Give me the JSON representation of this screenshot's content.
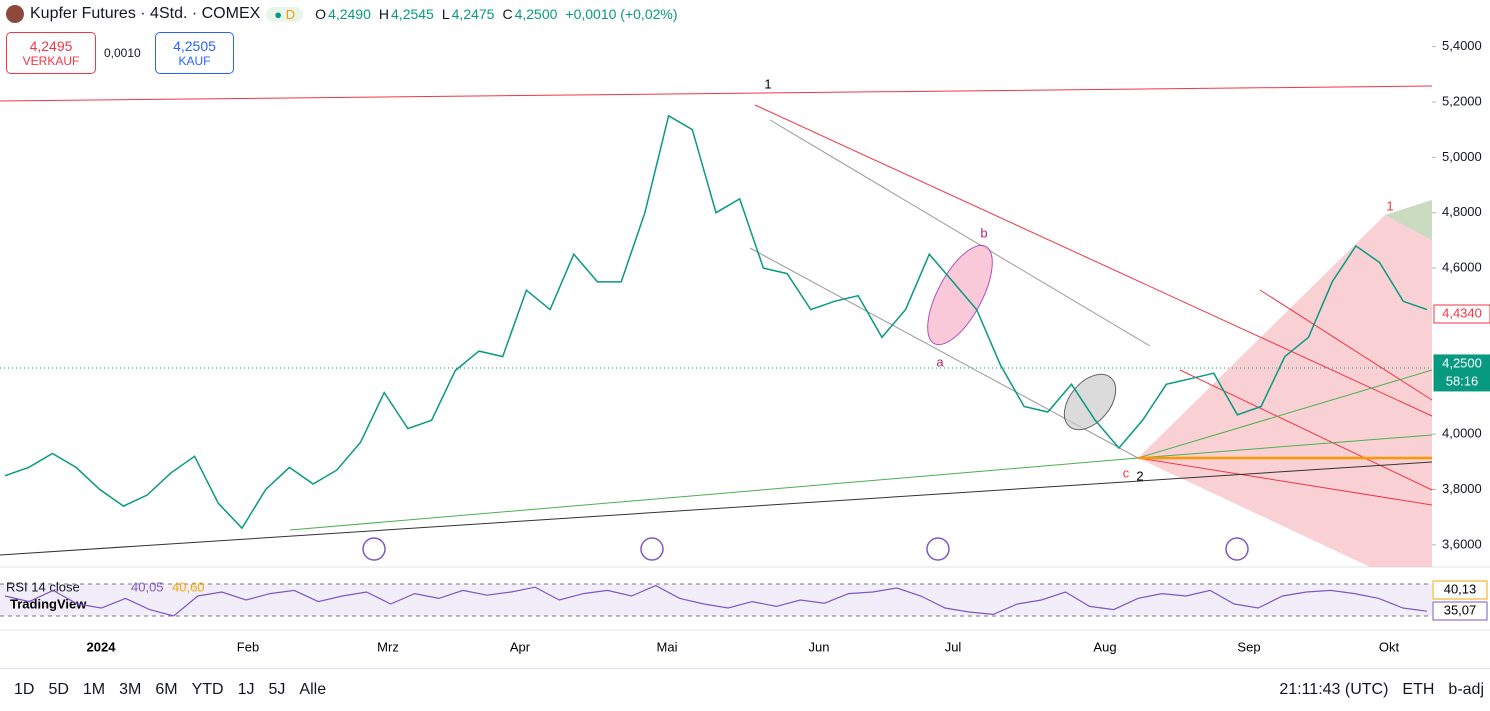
{
  "header": {
    "title": "Kupfer Futures · 4Std. · COMEX",
    "badge": "D",
    "ohlc": [
      {
        "k": "O",
        "v": "4,2490"
      },
      {
        "k": "H",
        "v": "4,2545"
      },
      {
        "k": "L",
        "v": "4,2475"
      },
      {
        "k": "C",
        "v": "4,2500"
      }
    ],
    "change": "+0,0010 (+0,02%)"
  },
  "trade": {
    "sell": "4,2495",
    "sell_label": "VERKAUF",
    "spread": "0,0010",
    "buy": "4,2505",
    "buy_label": "KAUF"
  },
  "chart": {
    "type": "line",
    "ylim": [
      3.52,
      5.46
    ],
    "yticks": [
      {
        "value": 5.4,
        "label": "5,4000"
      },
      {
        "value": 5.2,
        "label": "5,2000"
      },
      {
        "value": 5.0,
        "label": "5,0000"
      },
      {
        "value": 4.8,
        "label": "4,8000"
      },
      {
        "value": 4.6,
        "label": "4,6000"
      },
      {
        "value": 4.0,
        "label": "4,0000"
      },
      {
        "value": 3.8,
        "label": "3,8000"
      },
      {
        "value": 3.6,
        "label": "3,6000"
      }
    ],
    "closes": [
      3.85,
      3.88,
      3.93,
      3.88,
      3.8,
      3.74,
      3.78,
      3.86,
      3.92,
      3.75,
      3.66,
      3.8,
      3.88,
      3.82,
      3.87,
      3.97,
      4.15,
      4.02,
      4.05,
      4.23,
      4.3,
      4.28,
      4.52,
      4.45,
      4.65,
      4.55,
      4.55,
      4.8,
      5.15,
      5.1,
      4.8,
      4.85,
      4.6,
      4.58,
      4.45,
      4.48,
      4.5,
      4.35,
      4.45,
      4.65,
      4.55,
      4.45,
      4.25,
      4.1,
      4.08,
      4.18,
      4.05,
      3.95,
      4.05,
      4.18,
      4.2,
      4.22,
      4.07,
      4.1,
      4.28,
      4.35,
      4.55,
      4.68,
      4.62,
      4.48,
      4.45
    ],
    "price_tags": [
      {
        "value": 4.434,
        "label": "4,4340"
      },
      {
        "value": 4.25,
        "label": "4,2500"
      }
    ],
    "countdown": "58:16",
    "time_labels": [
      "2024",
      "Feb",
      "Mrz",
      "Apr",
      "Mai",
      "Jun",
      "Jul",
      "Aug",
      "Sep",
      "Okt"
    ],
    "wave_labels": [
      "1",
      "2",
      "a",
      "b",
      "c",
      "1"
    ]
  },
  "rsi": {
    "title": "RSI 14 close",
    "v1": "40,05",
    "v2": "40,60",
    "ylim": [
      25,
      75
    ],
    "values": [
      55,
      48,
      62,
      45,
      40,
      52,
      38,
      30,
      55,
      60,
      50,
      58,
      62,
      48,
      55,
      60,
      45,
      58,
      52,
      62,
      56,
      60,
      66,
      50,
      58,
      62,
      55,
      68,
      52,
      45,
      40,
      48,
      42,
      50,
      46,
      58,
      60,
      65,
      55,
      40,
      35,
      32,
      45,
      50,
      60,
      42,
      38,
      52,
      58,
      55,
      62,
      45,
      40,
      55,
      60,
      62,
      58,
      52,
      40,
      36
    ],
    "tags": [
      "40,13",
      "35,07"
    ]
  },
  "logo": "TradingView",
  "toolbar": {
    "ranges": [
      "1D",
      "5D",
      "1M",
      "3M",
      "6M",
      "YTD",
      "1J",
      "5J",
      "Alle"
    ],
    "time": "21:11:43 (UTC)",
    "session": "ETH",
    "adj": "b-adj"
  }
}
